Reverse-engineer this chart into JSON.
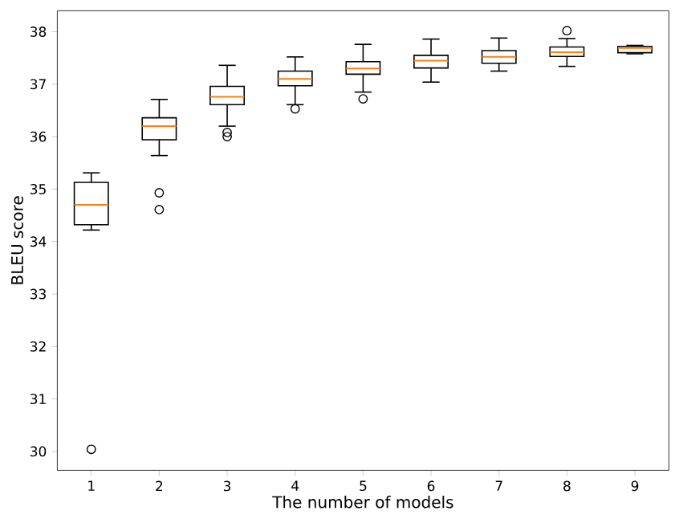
{
  "chart_data": {
    "type": "box",
    "xlabel": "The number of models",
    "ylabel": "BLEU score",
    "categories": [
      "1",
      "2",
      "3",
      "4",
      "5",
      "6",
      "7",
      "8",
      "9"
    ],
    "boxes": [
      {
        "low": 34.22,
        "q1": 34.32,
        "median": 34.7,
        "q3": 35.13,
        "high": 35.31,
        "outliers": [
          30.04
        ]
      },
      {
        "low": 35.64,
        "q1": 35.94,
        "median": 36.2,
        "q3": 36.36,
        "high": 36.71,
        "outliers": [
          34.93,
          34.61
        ]
      },
      {
        "low": 36.2,
        "q1": 36.61,
        "median": 36.76,
        "q3": 36.96,
        "high": 37.36,
        "outliers": [
          36.08,
          36.0
        ]
      },
      {
        "low": 36.61,
        "q1": 36.97,
        "median": 37.1,
        "q3": 37.25,
        "high": 37.52,
        "outliers": [
          36.53
        ]
      },
      {
        "low": 36.85,
        "q1": 37.19,
        "median": 37.3,
        "q3": 37.43,
        "high": 37.76,
        "outliers": [
          36.72
        ]
      },
      {
        "low": 37.04,
        "q1": 37.31,
        "median": 37.45,
        "q3": 37.55,
        "high": 37.86
      },
      {
        "low": 37.25,
        "q1": 37.4,
        "median": 37.52,
        "q3": 37.64,
        "high": 37.88
      },
      {
        "low": 37.34,
        "q1": 37.53,
        "median": 37.61,
        "q3": 37.71,
        "high": 37.87,
        "outliers": [
          38.02
        ]
      },
      {
        "low": 37.58,
        "q1": 37.6,
        "median": 37.69,
        "q3": 37.72,
        "high": 37.74
      }
    ],
    "color": "#000000",
    "marker": "circle",
    "grid": false,
    "ylim": [
      29.64,
      38.4
    ],
    "yticks": [
      30,
      31,
      32,
      33,
      34,
      35,
      36,
      37,
      38
    ]
  }
}
